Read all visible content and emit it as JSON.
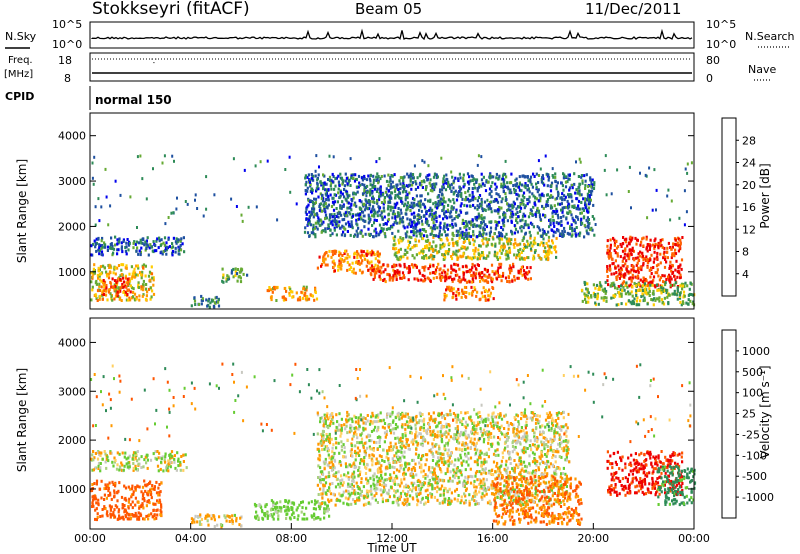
{
  "header": {
    "station": "Stokkseyri (fitACF)",
    "beam": "Beam 05",
    "date": "11/Dec/2011"
  },
  "noise_panel": {
    "left_label": "N.Sky",
    "left_ticks": [
      "10^5",
      "10^0"
    ],
    "right_ticks": [
      "10^5",
      "10^0"
    ],
    "right_label": "N.Search"
  },
  "freq_panel": {
    "left_label_line1": "Freq.",
    "left_label_line2": "[MHz]",
    "left_ticks": [
      "18",
      "8"
    ],
    "right_ticks": [
      "80",
      "0"
    ],
    "right_label": "Nave"
  },
  "cpid_panel": {
    "label": "CPID",
    "mode": "normal 150"
  },
  "power_panel": {
    "ylabel": "Slant Range [km]",
    "colorbar_label": "Power [dB]",
    "colorbar_ticks": [
      "28",
      "24",
      "20",
      "16",
      "12",
      "8",
      "4"
    ],
    "colorbar_colors": [
      "#ee0000",
      "#ff6600",
      "#ff9900",
      "#ffcc00",
      "#66aa33",
      "#2e8b57",
      "#1e50a0",
      "#0000ee"
    ]
  },
  "velocity_panel": {
    "ylabel": "Slant Range [km]",
    "colorbar_label": "Velocity [m s⁻¹]",
    "colorbar_ticks": [
      "1000",
      "500",
      "100",
      "25",
      "-25",
      "-100",
      "-500",
      "-1000"
    ],
    "colorbar_colors": [
      "#1e3aa0",
      "#2e8b57",
      "#66cc33",
      "#aad080",
      "#c8c8c0",
      "#ffd060",
      "#ff9900",
      "#ff5500",
      "#ee0000"
    ]
  },
  "xaxis": {
    "label": "Time UT",
    "ticks": [
      "00:00",
      "04:00",
      "08:00",
      "12:00",
      "16:00",
      "20:00",
      "00:00"
    ]
  },
  "chart_data": [
    {
      "type": "heatmap",
      "title": "Power",
      "xlabel": "Time UT",
      "ylabel": "Slant Range [km]",
      "xlim": [
        0,
        24
      ],
      "ylim": [
        180,
        4500
      ],
      "x_ticks": [
        "00:00",
        "04:00",
        "08:00",
        "12:00",
        "16:00",
        "20:00",
        "00:00"
      ],
      "y_ticks": [
        1000,
        2000,
        3000,
        4000
      ],
      "colorbar": {
        "label": "Power [dB]",
        "ticks": [
          28,
          24,
          20,
          16,
          12,
          8,
          4
        ]
      },
      "regions": [
        {
          "t0": 0.0,
          "t1": 3.8,
          "r0": 1400,
          "r1": 1800,
          "db": 8
        },
        {
          "t0": 0.0,
          "t1": 2.5,
          "r0": 400,
          "r1": 1200,
          "db": 18
        },
        {
          "t0": 0.4,
          "t1": 1.6,
          "r0": 500,
          "r1": 900,
          "db": 26
        },
        {
          "t0": 4.0,
          "t1": 5.2,
          "r0": 250,
          "r1": 500,
          "db": 10
        },
        {
          "t0": 5.2,
          "t1": 6.2,
          "r0": 800,
          "r1": 1100,
          "db": 12
        },
        {
          "t0": 7.0,
          "t1": 9.0,
          "r0": 400,
          "r1": 700,
          "db": 20
        },
        {
          "t0": 9.0,
          "t1": 11.5,
          "r0": 1000,
          "r1": 1500,
          "db": 22
        },
        {
          "t0": 11.0,
          "t1": 17.5,
          "r0": 800,
          "r1": 1200,
          "db": 26
        },
        {
          "t0": 12.0,
          "t1": 18.5,
          "r0": 1300,
          "r1": 1800,
          "db": 16
        },
        {
          "t0": 14.0,
          "t1": 16.0,
          "r0": 400,
          "r1": 700,
          "db": 22
        },
        {
          "t0": 8.5,
          "t1": 20.0,
          "r0": 1800,
          "r1": 3200,
          "db": 8
        },
        {
          "t0": 20.5,
          "t1": 23.5,
          "r0": 700,
          "r1": 1800,
          "db": 27
        },
        {
          "t0": 19.5,
          "t1": 24.0,
          "r0": 300,
          "r1": 800,
          "db": 14
        }
      ]
    },
    {
      "type": "heatmap",
      "title": "Velocity",
      "xlabel": "Time UT",
      "ylabel": "Slant Range [km]",
      "xlim": [
        0,
        24
      ],
      "ylim": [
        180,
        4500
      ],
      "x_ticks": [
        "00:00",
        "04:00",
        "08:00",
        "12:00",
        "16:00",
        "20:00",
        "00:00"
      ],
      "y_ticks": [
        1000,
        2000,
        3000,
        4000
      ],
      "colorbar": {
        "label": "Velocity [m s⁻¹]",
        "ticks": [
          1000,
          500,
          100,
          25,
          -25,
          -100,
          -500,
          -1000
        ]
      },
      "regions": [
        {
          "t0": 0.0,
          "t1": 3.8,
          "r0": 1400,
          "r1": 1800,
          "v": 0
        },
        {
          "t0": 0.0,
          "t1": 2.8,
          "r0": 400,
          "r1": 1200,
          "v": -400
        },
        {
          "t0": 4.0,
          "t1": 6.0,
          "r0": 250,
          "r1": 500,
          "v": -80
        },
        {
          "t0": 6.5,
          "t1": 9.5,
          "r0": 400,
          "r1": 800,
          "v": 150
        },
        {
          "t0": 9.0,
          "t1": 19.0,
          "r0": 700,
          "r1": 2600,
          "v": 0
        },
        {
          "t0": 16.0,
          "t1": 19.5,
          "r0": 300,
          "r1": 1300,
          "v": -300
        },
        {
          "t0": 20.5,
          "t1": 23.5,
          "r0": 900,
          "r1": 1800,
          "v": -800
        },
        {
          "t0": 22.5,
          "t1": 24.0,
          "r0": 700,
          "r1": 1500,
          "v": 400
        }
      ]
    }
  ]
}
